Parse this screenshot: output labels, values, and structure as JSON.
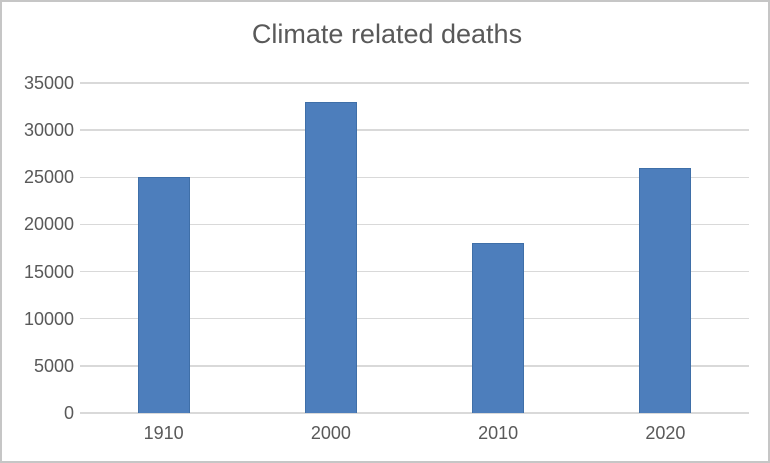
{
  "chart_data": {
    "type": "bar",
    "title": "Climate related deaths",
    "categories": [
      "1910",
      "2000",
      "2010",
      "2020"
    ],
    "values": [
      25000,
      33000,
      18000,
      26000
    ],
    "xlabel": "",
    "ylabel": "",
    "ylim": [
      0,
      35000
    ],
    "ytick_step": 5000,
    "ytick_labels": [
      "0",
      "5000",
      "10000",
      "15000",
      "20000",
      "25000",
      "30000",
      "35000"
    ],
    "grid": true,
    "legend": "none",
    "colors": {
      "bar_fill": "#4D7EBC",
      "bar_border": "#3F6FA8",
      "gridline": "#D9D9D9",
      "axis_line": "#D9D9D9",
      "text": "#595959",
      "frame_border": "#C6C6C6",
      "background": "#FFFFFF"
    }
  }
}
